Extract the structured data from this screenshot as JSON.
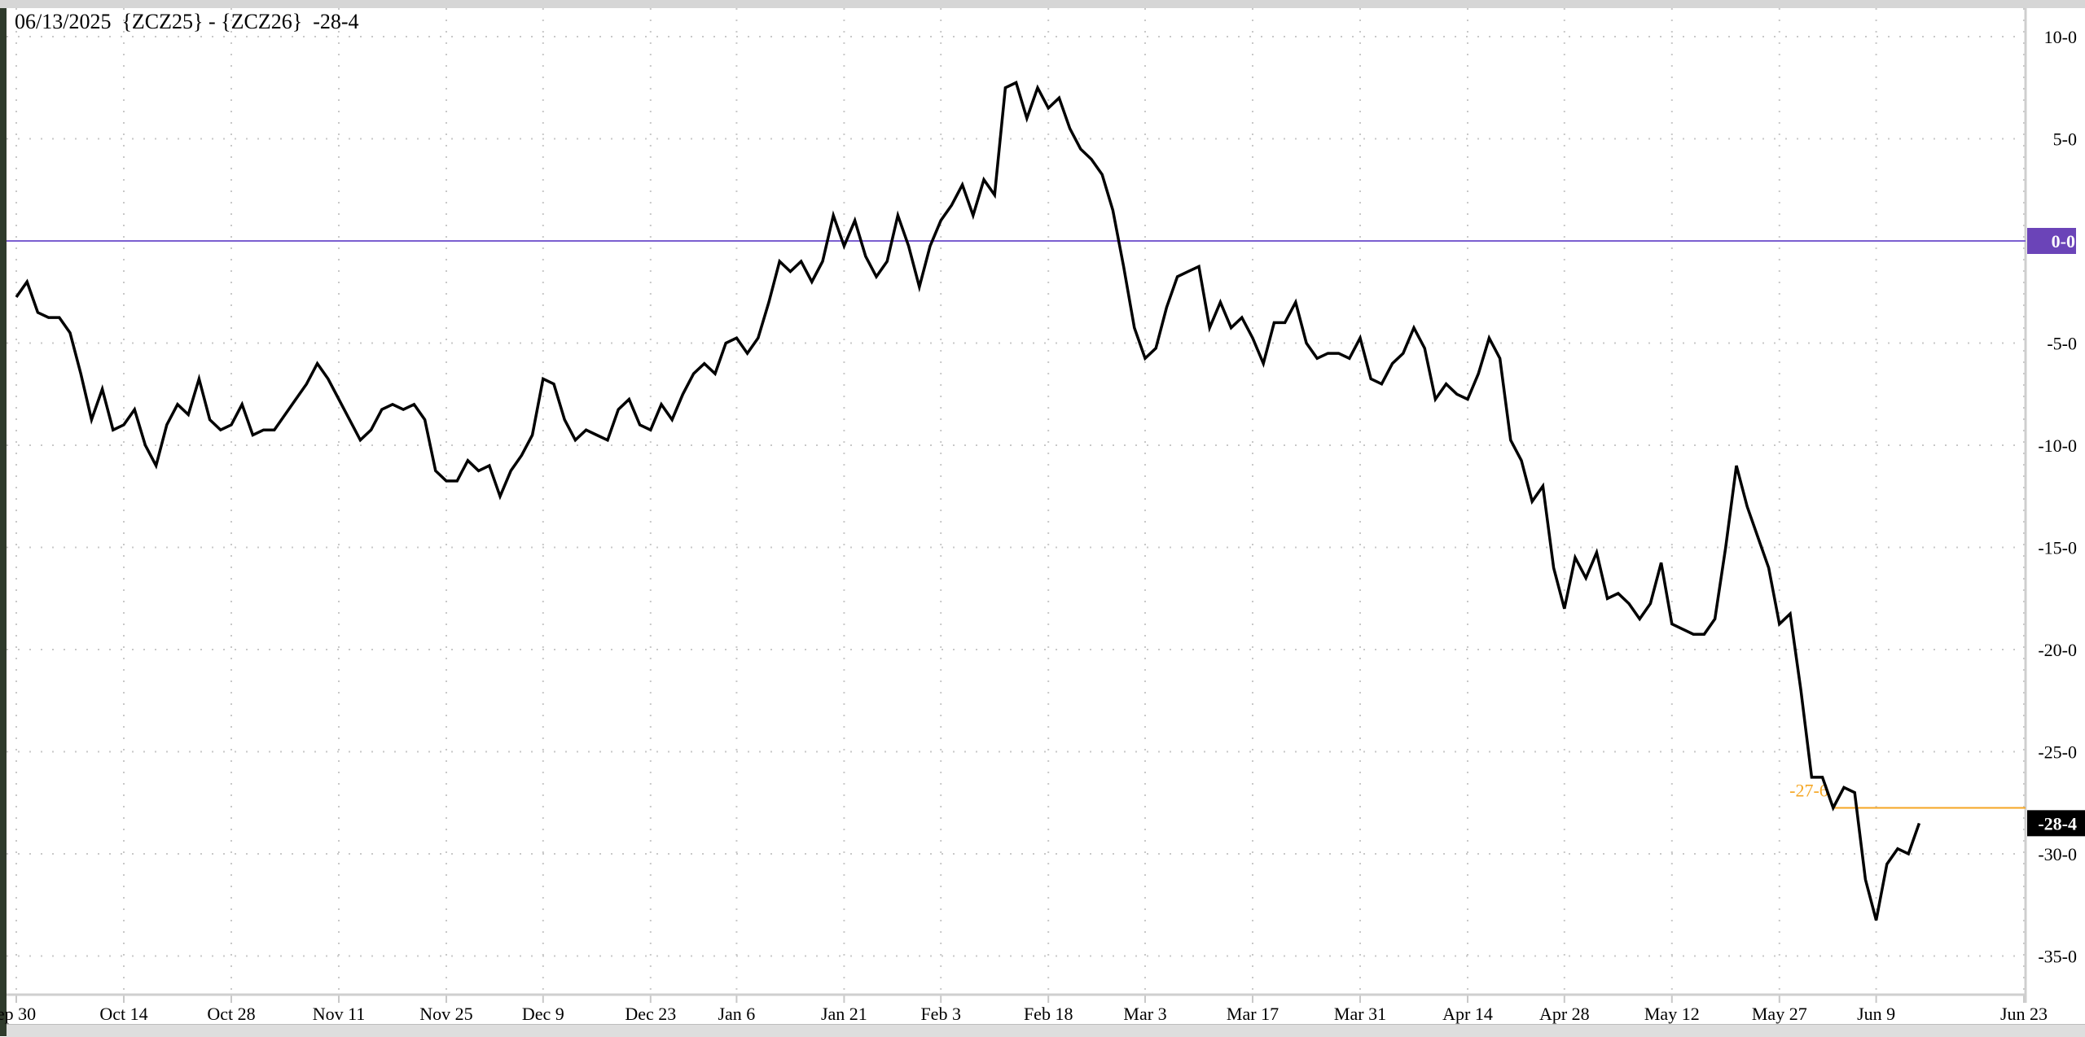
{
  "header": {
    "title": "06/13/2025  {ZCZ25} - {ZCZ26}  -28-4"
  },
  "colors": {
    "line": "#000000",
    "zero_line": "#7b5fd0",
    "zero_badge": "#6b44b8",
    "marker_line": "#f5a623",
    "last_badge": "#000000",
    "grid": "#c8c8c8"
  },
  "chart_data": {
    "type": "line",
    "title": "06/13/2025  {ZCZ25} - {ZCZ26}  -28-4",
    "ylim": [
      -37,
      11.5
    ],
    "grid": true,
    "y_axis_side": "right",
    "y_ticks": [
      {
        "value": 10,
        "label": "10-0"
      },
      {
        "value": 5,
        "label": "5-0"
      },
      {
        "value": 0,
        "label": "0-0"
      },
      {
        "value": -5,
        "label": "-5-0"
      },
      {
        "value": -10,
        "label": "-10-0"
      },
      {
        "value": -15,
        "label": "-15-0"
      },
      {
        "value": -20,
        "label": "-20-0"
      },
      {
        "value": -25,
        "label": "-25-0"
      },
      {
        "value": -30,
        "label": "-30-0"
      },
      {
        "value": -35,
        "label": "-35-0"
      }
    ],
    "x_ticks": [
      {
        "label": "ep 30",
        "date": "2024-09-30"
      },
      {
        "label": "Oct 14",
        "date": "2024-10-14"
      },
      {
        "label": "Oct 28",
        "date": "2024-10-28"
      },
      {
        "label": "Nov 11",
        "date": "2024-11-11"
      },
      {
        "label": "Nov 25",
        "date": "2024-11-25"
      },
      {
        "label": "Dec 9",
        "date": "2024-12-09"
      },
      {
        "label": "Dec 23",
        "date": "2024-12-23"
      },
      {
        "label": "Jan 6",
        "date": "2025-01-06"
      },
      {
        "label": "Jan 21",
        "date": "2025-01-21"
      },
      {
        "label": "Feb 3",
        "date": "2025-02-03"
      },
      {
        "label": "Feb 18",
        "date": "2025-02-18"
      },
      {
        "label": "Mar 3",
        "date": "2025-03-03"
      },
      {
        "label": "Mar 17",
        "date": "2025-03-17"
      },
      {
        "label": "Mar 31",
        "date": "2025-03-31"
      },
      {
        "label": "Apr 14",
        "date": "2025-04-14"
      },
      {
        "label": "Apr 28",
        "date": "2025-04-28"
      },
      {
        "label": "May 12",
        "date": "2025-05-12"
      },
      {
        "label": "May 27",
        "date": "2025-05-27"
      },
      {
        "label": "Jun 9",
        "date": "2025-06-09"
      },
      {
        "label": "Jun 23",
        "date": "2025-06-23"
      }
    ],
    "series": [
      {
        "dates": [
          "2024-09-30",
          "2024-10-01",
          "2024-10-02",
          "2024-10-03",
          "2024-10-04",
          "2024-10-07",
          "2024-10-08",
          "2024-10-09",
          "2024-10-10",
          "2024-10-11",
          "2024-10-14",
          "2024-10-15",
          "2024-10-16",
          "2024-10-17",
          "2024-10-18",
          "2024-10-21",
          "2024-10-22",
          "2024-10-23",
          "2024-10-24",
          "2024-10-25",
          "2024-10-28",
          "2024-10-29",
          "2024-10-30",
          "2024-10-31",
          "2024-11-01",
          "2024-11-04",
          "2024-11-05",
          "2024-11-06",
          "2024-11-07",
          "2024-11-08",
          "2024-11-11",
          "2024-11-12",
          "2024-11-13",
          "2024-11-14",
          "2024-11-15",
          "2024-11-18",
          "2024-11-19",
          "2024-11-20",
          "2024-11-21",
          "2024-11-22",
          "2024-11-25",
          "2024-11-26",
          "2024-11-27",
          "2024-11-29",
          "2024-12-02",
          "2024-12-03",
          "2024-12-04",
          "2024-12-05",
          "2024-12-06",
          "2024-12-09",
          "2024-12-10",
          "2024-12-11",
          "2024-12-12",
          "2024-12-13",
          "2024-12-16",
          "2024-12-17",
          "2024-12-18",
          "2024-12-19",
          "2024-12-20",
          "2024-12-23",
          "2024-12-24",
          "2024-12-26",
          "2024-12-27",
          "2024-12-30",
          "2024-12-31",
          "2025-01-02",
          "2025-01-03",
          "2025-01-06",
          "2025-01-07",
          "2025-01-08",
          "2025-01-09",
          "2025-01-10",
          "2025-01-13",
          "2025-01-14",
          "2025-01-15",
          "2025-01-16",
          "2025-01-17",
          "2025-01-21",
          "2025-01-22",
          "2025-01-23",
          "2025-01-24",
          "2025-01-27",
          "2025-01-28",
          "2025-01-29",
          "2025-01-30",
          "2025-01-31",
          "2025-02-03",
          "2025-02-04",
          "2025-02-05",
          "2025-02-06",
          "2025-02-07",
          "2025-02-10",
          "2025-02-11",
          "2025-02-12",
          "2025-02-13",
          "2025-02-14",
          "2025-02-18",
          "2025-02-19",
          "2025-02-20",
          "2025-02-21",
          "2025-02-24",
          "2025-02-25",
          "2025-02-26",
          "2025-02-27",
          "2025-02-28",
          "2025-03-03",
          "2025-03-04",
          "2025-03-05",
          "2025-03-06",
          "2025-03-07",
          "2025-03-10",
          "2025-03-11",
          "2025-03-12",
          "2025-03-13",
          "2025-03-14",
          "2025-03-17",
          "2025-03-18",
          "2025-03-19",
          "2025-03-20",
          "2025-03-21",
          "2025-03-24",
          "2025-03-25",
          "2025-03-26",
          "2025-03-27",
          "2025-03-28",
          "2025-03-31",
          "2025-04-01",
          "2025-04-02",
          "2025-04-03",
          "2025-04-04",
          "2025-04-07",
          "2025-04-08",
          "2025-04-09",
          "2025-04-10",
          "2025-04-11",
          "2025-04-14",
          "2025-04-15",
          "2025-04-16",
          "2025-04-17",
          "2025-04-21",
          "2025-04-22",
          "2025-04-23",
          "2025-04-24",
          "2025-04-25",
          "2025-04-28",
          "2025-04-29",
          "2025-04-30",
          "2025-05-01",
          "2025-05-02",
          "2025-05-05",
          "2025-05-06",
          "2025-05-07",
          "2025-05-08",
          "2025-05-09",
          "2025-05-12",
          "2025-05-13",
          "2025-05-14",
          "2025-05-15",
          "2025-05-16",
          "2025-05-19",
          "2025-05-20",
          "2025-05-21",
          "2025-05-22",
          "2025-05-23",
          "2025-05-27",
          "2025-05-28",
          "2025-05-29",
          "2025-05-30",
          "2025-06-02",
          "2025-06-03",
          "2025-06-04",
          "2025-06-05",
          "2025-06-06",
          "2025-06-09",
          "2025-06-10",
          "2025-06-11",
          "2025-06-12",
          "2025-06-13"
        ],
        "values": [
          -2.75,
          -2,
          -3.5,
          -3.75,
          -3.75,
          -4.5,
          -6.5,
          -8.75,
          -7.25,
          -9.25,
          -9,
          -8.25,
          -10,
          -11,
          -9,
          -8,
          -8.5,
          -6.75,
          -8.75,
          -9.25,
          -9,
          -8,
          -9.5,
          -9.25,
          -9.25,
          -8.5,
          -7.75,
          -7,
          -6,
          -6.75,
          -7.75,
          -8.75,
          -9.75,
          -9.25,
          -8.25,
          -8,
          -8.25,
          -8,
          -8.75,
          -11.25,
          -11.75,
          -11.75,
          -10.75,
          -11.25,
          -11,
          -12.5,
          -11.25,
          -10.5,
          -9.5,
          -6.75,
          -7,
          -8.75,
          -9.75,
          -9.25,
          -9.5,
          -9.75,
          -8.25,
          -7.75,
          -9,
          -9.25,
          -8,
          -8.75,
          -7.5,
          -6.5,
          -6,
          -6.5,
          -5,
          -4.75,
          -5.5,
          -4.75,
          -3,
          -1,
          -1.5,
          -1,
          -2,
          -1,
          1.25,
          -0.25,
          1,
          -0.75,
          -1.75,
          -1,
          1.25,
          -0.25,
          -2.25,
          -0.25,
          1,
          1.75,
          2.75,
          1.25,
          3,
          2.25,
          7.5,
          7.75,
          6,
          7.5,
          6.5,
          7,
          5.5,
          4.5,
          4,
          3.25,
          1.5,
          -1.25,
          -4.25,
          -5.75,
          -5.25,
          -3.25,
          -1.75,
          -1.5,
          -1.25,
          -4.25,
          -3,
          -4.25,
          -3.75,
          -4.75,
          -6,
          -4,
          -4,
          -3,
          -5,
          -5.75,
          -5.5,
          -5.5,
          -5.75,
          -4.75,
          -6.75,
          -7,
          -6,
          -5.5,
          -4.25,
          -5.25,
          -7.75,
          -7,
          -7.5,
          -7.75,
          -6.5,
          -4.75,
          -5.75,
          -9.75,
          -10.75,
          -12.75,
          -12,
          -16,
          -18,
          -15.5,
          -16.5,
          -15.25,
          -17.5,
          -17.25,
          -17.75,
          -18.5,
          -17.75,
          -15.75,
          -18.75,
          -19,
          -19.25,
          -19.25,
          -18.5,
          -15,
          -11,
          -13,
          -14.5,
          -16,
          -18.75,
          -18.25,
          -22,
          -26.25,
          -26.25,
          -27.75,
          -26.75,
          -27,
          -31.25,
          -33.25,
          -30.5,
          -29.75,
          -30,
          -28.5
        ]
      }
    ],
    "reference_lines": {
      "zero": {
        "value": 0,
        "label": "0-0"
      },
      "marker": {
        "value": -27.75,
        "label": "-27-6",
        "from_date": "2025-06-03"
      },
      "last": {
        "value": -28.5,
        "label": "-28-4"
      }
    }
  }
}
